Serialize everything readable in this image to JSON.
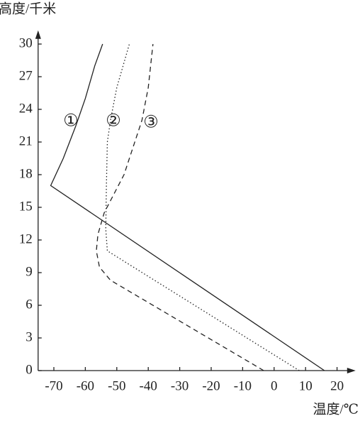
{
  "chart_data": {
    "type": "line",
    "y_label": "高度/千米",
    "x_label": "温度/℃",
    "xlim": [
      -75,
      25
    ],
    "ylim": [
      0,
      31
    ],
    "xticks": [
      -70,
      -60,
      -50,
      -40,
      -30,
      -20,
      -10,
      0,
      10,
      20
    ],
    "yticks": [
      0,
      3,
      6,
      9,
      12,
      15,
      18,
      21,
      24,
      27,
      30
    ],
    "series": [
      {
        "name": "①",
        "style": "solid",
        "x": [
          16,
          -71,
          -67,
          -63,
          -60,
          -57,
          -54.5
        ],
        "values": [
          0,
          17,
          19.5,
          22.5,
          25,
          28,
          30
        ]
      },
      {
        "name": "②",
        "style": "dotted",
        "x": [
          8,
          -53,
          -53.5,
          -53.3,
          -53,
          -52,
          -50,
          -46
        ],
        "values": [
          0,
          11,
          13,
          17,
          21,
          23,
          26,
          30
        ]
      },
      {
        "name": "③",
        "style": "dashed",
        "x": [
          -3.3,
          -52,
          -55.5,
          -56.5,
          -56,
          -54,
          -47.7,
          -42,
          -40,
          -38.5
        ],
        "values": [
          0,
          8.3,
          9.5,
          11,
          12.5,
          14.5,
          18,
          23,
          26,
          30
        ]
      }
    ]
  }
}
